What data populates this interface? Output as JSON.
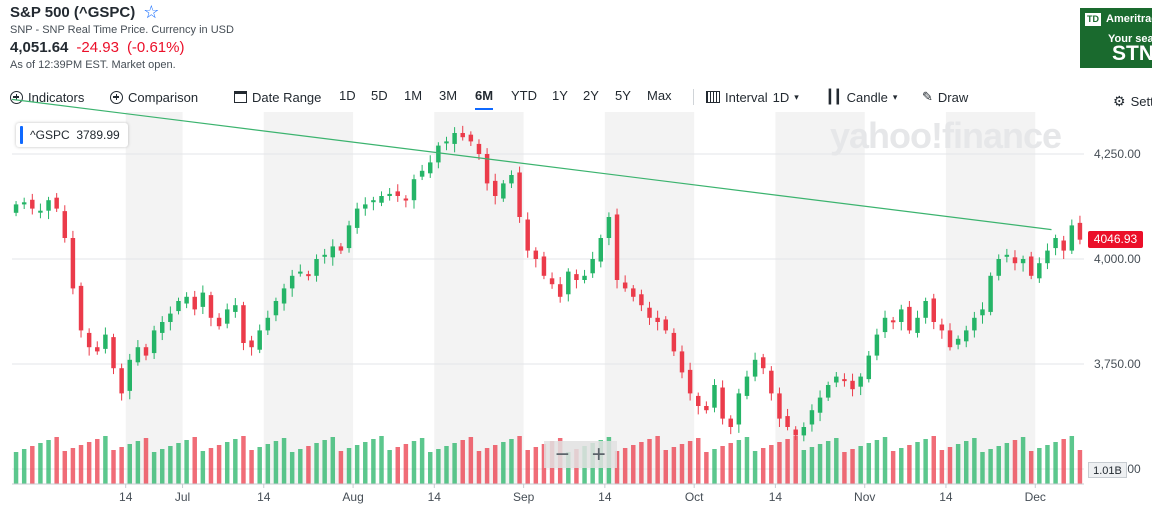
{
  "header": {
    "title": "S&P 500 (^GSPC)",
    "subtitle": "SNP - SNP Real Time Price. Currency in USD",
    "price": "4,051.64",
    "change": "-24.93",
    "change_pct": "(-0.61%)",
    "as_of": "As of 12:39PM EST. Market open."
  },
  "ad": {
    "brand": "Ameritrade",
    "logo": "TD",
    "line1": "Your search",
    "line2": "STNG"
  },
  "toolbar": {
    "indicators": "Indicators",
    "comparison": "Comparison",
    "date_range": "Date Range",
    "ranges": [
      "1D",
      "5D",
      "1M",
      "3M",
      "6M",
      "YTD",
      "1Y",
      "2Y",
      "5Y",
      "Max"
    ],
    "active_range": "6M",
    "interval_label": "Interval",
    "interval_value": "1D",
    "chart_type": "Candle",
    "draw": "Draw",
    "settings": "Settings"
  },
  "legend": {
    "symbol": "^GSPC",
    "value": "3789.99"
  },
  "watermark": "yahoo!finance",
  "zoom": {
    "minus": "−",
    "plus": "+"
  },
  "price_tag": "4046.93",
  "volume_tag": "1.01B",
  "colors": {
    "up": "#25b467",
    "down": "#eb3b4a",
    "trendline": "#3bb36e",
    "accent": "#0f69ff"
  },
  "chart_data": {
    "type": "candlestick",
    "title": "S&P 500 (^GSPC)",
    "interval": "1D",
    "y_ticks": [
      "4,250.00",
      "4,000.00",
      "3,750.00",
      "3,500.00"
    ],
    "y_tick_values": [
      4250,
      4000,
      3750,
      3500
    ],
    "ylim": [
      3500,
      4300
    ],
    "x_ticks": [
      "14",
      "Jul",
      "14",
      "Aug",
      "14",
      "Sep",
      "14",
      "Oct",
      "14",
      "Nov",
      "14",
      "Dec"
    ],
    "x_tick_positions": [
      14,
      21,
      31,
      42,
      52,
      63,
      73,
      84,
      94,
      105,
      115,
      126
    ],
    "trendline": {
      "from": [
        0,
        4380
      ],
      "to": [
        128,
        4070
      ],
      "label": "trendline"
    },
    "closes": [
      4130,
      4135,
      4120,
      4115,
      4140,
      4120,
      4050,
      3930,
      3830,
      3790,
      3780,
      3820,
      3740,
      3680,
      3760,
      3790,
      3770,
      3830,
      3850,
      3870,
      3900,
      3910,
      3880,
      3920,
      3860,
      3840,
      3880,
      3890,
      3800,
      3790,
      3830,
      3860,
      3900,
      3930,
      3960,
      3970,
      3960,
      4000,
      4010,
      4030,
      4020,
      4080,
      4120,
      4130,
      4140,
      4150,
      4155,
      4150,
      4140,
      4190,
      4210,
      4230,
      4270,
      4280,
      4300,
      4290,
      4280,
      4250,
      4180,
      4150,
      4180,
      4200,
      4100,
      4020,
      4000,
      3960,
      3940,
      3910,
      3970,
      3950,
      3960,
      4000,
      4050,
      4100,
      3950,
      3930,
      3910,
      3890,
      3860,
      3850,
      3830,
      3780,
      3730,
      3680,
      3650,
      3640,
      3700,
      3620,
      3600,
      3680,
      3720,
      3760,
      3740,
      3680,
      3620,
      3600,
      3580,
      3600,
      3640,
      3670,
      3700,
      3720,
      3710,
      3690,
      3720,
      3770,
      3820,
      3860,
      3850,
      3880,
      3830,
      3860,
      3900,
      3850,
      3830,
      3790,
      3810,
      3830,
      3860,
      3880,
      3960,
      4000,
      4010,
      3990,
      4000,
      3960,
      3990,
      4020,
      4050,
      4020,
      4080,
      4046
    ]
  }
}
